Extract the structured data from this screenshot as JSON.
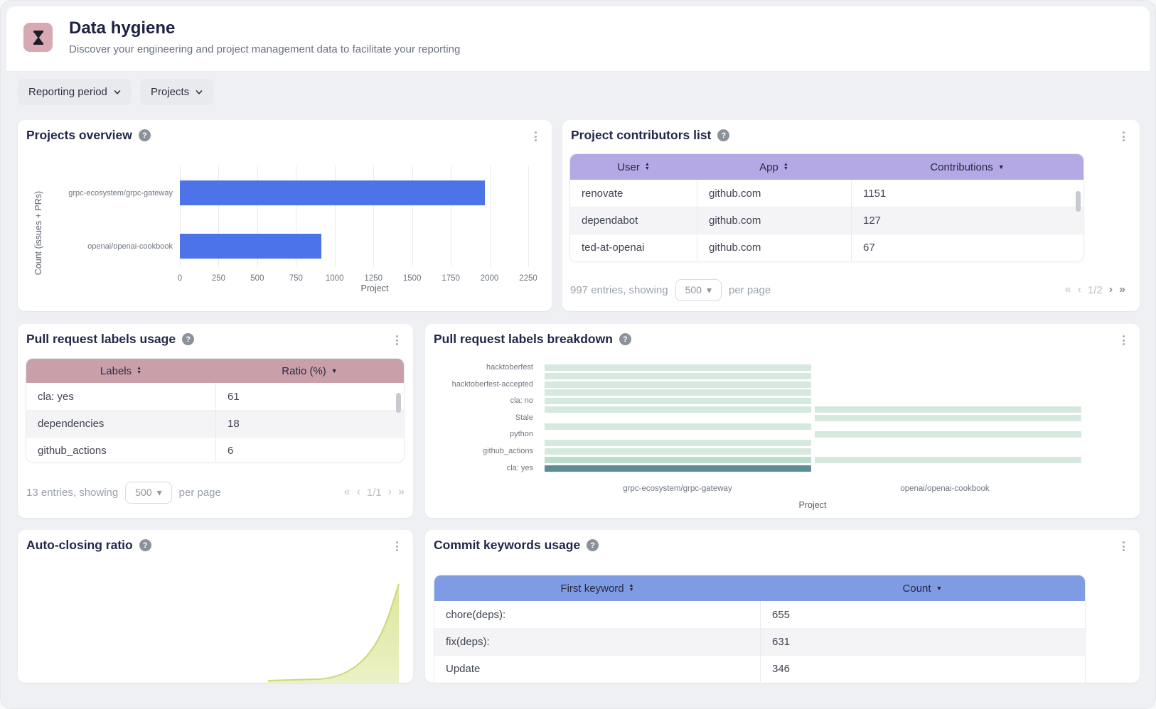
{
  "header": {
    "title": "Data hygiene",
    "subtitle": "Discover your engineering and project management data to facilitate your reporting",
    "icon": "hourglass-icon"
  },
  "filters": {
    "reporting_period": "Reporting period",
    "projects": "Projects"
  },
  "icons": {
    "sort_asc": "▲",
    "sort_desc": "▼",
    "help": "?",
    "caret_down": "▾",
    "pag_first": "«",
    "pag_prev": "‹",
    "pag_next": "›",
    "pag_last": "»"
  },
  "colors": {
    "bar_blue": "#4d73e8",
    "header_purple": "#b4a8e5",
    "header_pink": "#c99fa9",
    "header_blue": "#7e9be4",
    "heat_light": "#d6e9de",
    "heat_medium": "#bedecd",
    "heat_dark": "#5d8d94",
    "area_fill": "#e2e9a4",
    "area_line": "#ccd878",
    "icon_bg_pink": "#d6a9b3"
  },
  "panels": {
    "projects_overview": {
      "title": "Projects overview"
    },
    "project_contributors": {
      "title": "Project contributors list",
      "columns": [
        {
          "label": "User",
          "sort": "both"
        },
        {
          "label": "App",
          "sort": "both"
        },
        {
          "label": "Contributions",
          "sort": "desc"
        }
      ],
      "rows": [
        [
          "renovate",
          "github.com",
          "1151"
        ],
        [
          "dependabot",
          "github.com",
          "127"
        ],
        [
          "ted-at-openai",
          "github.com",
          "67"
        ]
      ],
      "footer": {
        "entries": "997 entries, showing",
        "page_size": "500",
        "per_page": "per page",
        "page": "1/2"
      }
    },
    "pr_labels_usage": {
      "title": "Pull request labels usage",
      "columns": [
        {
          "label": "Labels",
          "sort": "both"
        },
        {
          "label": "Ratio (%)",
          "sort": "desc"
        }
      ],
      "rows": [
        [
          "cla: yes",
          "61"
        ],
        [
          "dependencies",
          "18"
        ],
        [
          "github_actions",
          "6"
        ]
      ],
      "footer": {
        "entries": "13 entries, showing",
        "page_size": "500",
        "per_page": "per page",
        "page": "1/1"
      }
    },
    "pr_labels_breakdown": {
      "title": "Pull request labels breakdown"
    },
    "auto_closing_ratio": {
      "title": "Auto-closing ratio"
    },
    "commit_keywords": {
      "title": "Commit keywords usage",
      "columns": [
        {
          "label": "First keyword",
          "sort": "both"
        },
        {
          "label": "Count",
          "sort": "desc"
        }
      ],
      "rows": [
        [
          "chore(deps):",
          "655"
        ],
        [
          "fix(deps):",
          "631"
        ],
        [
          "Update",
          "346"
        ]
      ]
    }
  },
  "chart_data": [
    {
      "id": "projects_overview",
      "type": "bar",
      "orientation": "horizontal",
      "categories": [
        "grpc-ecosystem/grpc-gateway",
        "openai/openai-cookbook"
      ],
      "values": [
        1970,
        915
      ],
      "xlabel": "Project",
      "ylabel": "Count (issues + PRs)",
      "xlim": [
        0,
        2250
      ],
      "xticks": [
        0,
        250,
        500,
        750,
        1000,
        1250,
        1500,
        1750,
        2000,
        2250
      ],
      "grid": true,
      "bar_color": "#4d73e8"
    },
    {
      "id": "pr_labels_breakdown",
      "type": "heatmap",
      "columns": [
        "grpc-ecosystem/grpc-gateway",
        "openai/openai-cookbook"
      ],
      "xlabel": "Project",
      "visible_row_labels": [
        "hacktoberfest",
        "hacktoberfest-accepted",
        "cla: no",
        "Stale",
        "python",
        "github_actions",
        "cla: yes"
      ],
      "rows": [
        {
          "label": "hacktoberfest",
          "cells": [
            1,
            0
          ]
        },
        {
          "label": "",
          "cells": [
            1,
            0
          ]
        },
        {
          "label": "hacktoberfest-accepted",
          "cells": [
            1,
            0
          ]
        },
        {
          "label": "",
          "cells": [
            1,
            0
          ]
        },
        {
          "label": "cla: no",
          "cells": [
            1,
            0
          ]
        },
        {
          "label": "",
          "cells": [
            1,
            1
          ]
        },
        {
          "label": "Stale",
          "cells": [
            0,
            1
          ]
        },
        {
          "label": "",
          "cells": [
            1,
            0
          ]
        },
        {
          "label": "python",
          "cells": [
            0,
            1
          ]
        },
        {
          "label": "",
          "cells": [
            1,
            0
          ]
        },
        {
          "label": "github_actions",
          "cells": [
            1,
            0
          ]
        },
        {
          "label": "",
          "cells": [
            2,
            1
          ]
        },
        {
          "label": "cla: yes",
          "cells": [
            3,
            0
          ]
        }
      ],
      "intensity_colors": {
        "0": "transparent",
        "1": "#d6e9de",
        "2": "#bedecd",
        "3": "#5d8d94"
      }
    },
    {
      "id": "auto_closing_ratio",
      "type": "area",
      "title": "Auto-closing ratio",
      "note_visible_shape": "curve near zero rising steeply at right edge, partially cut off",
      "fill": "#e2e9a4",
      "line": "#ccd878"
    }
  ]
}
